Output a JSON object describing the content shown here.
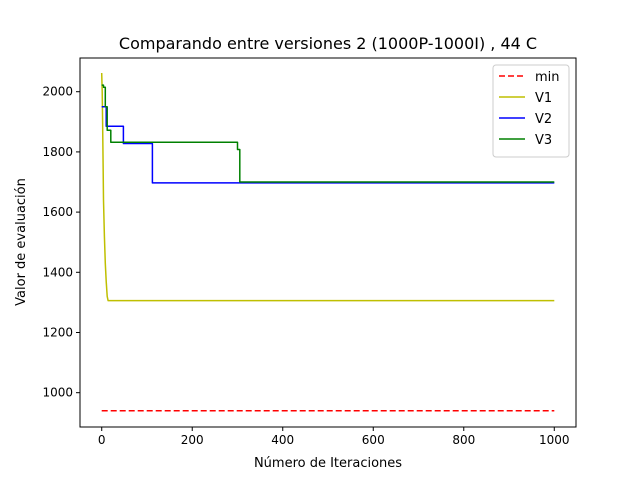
{
  "chart_data": {
    "type": "line",
    "title": "Comparando entre versiones 2 (1000P-1000I) , 44 C",
    "xlabel": "Número de Iteraciones",
    "ylabel": "Valor de evaluación",
    "xlim": [
      -48,
      1048
    ],
    "ylim": [
      886,
      2112
    ],
    "xticks": [
      0,
      200,
      400,
      600,
      800,
      1000
    ],
    "yticks": [
      1000,
      1200,
      1400,
      1600,
      1800,
      2000
    ],
    "grid": false,
    "legend_position": "top-right",
    "series": [
      {
        "name": "min",
        "color": "#ff0000",
        "dash": true,
        "points": [
          [
            0,
            940
          ],
          [
            1000,
            940
          ]
        ]
      },
      {
        "name": "V1",
        "color": "#bfbf00",
        "dash": false,
        "points": [
          [
            0,
            2062
          ],
          [
            1,
            2000
          ],
          [
            2,
            1900
          ],
          [
            3,
            1760
          ],
          [
            4,
            1640
          ],
          [
            6,
            1520
          ],
          [
            8,
            1430
          ],
          [
            10,
            1370
          ],
          [
            12,
            1320
          ],
          [
            14,
            1306
          ],
          [
            20,
            1306
          ],
          [
            1000,
            1306
          ]
        ]
      },
      {
        "name": "V2",
        "color": "#0000ff",
        "dash": false,
        "points": [
          [
            0,
            1950
          ],
          [
            10,
            1950
          ],
          [
            10,
            1885
          ],
          [
            48,
            1885
          ],
          [
            48,
            1828
          ],
          [
            112,
            1828
          ],
          [
            112,
            1697
          ],
          [
            1000,
            1697
          ]
        ]
      },
      {
        "name": "V3",
        "color": "#008000",
        "dash": false,
        "points": [
          [
            0,
            2022
          ],
          [
            4,
            2022
          ],
          [
            4,
            2015
          ],
          [
            8,
            2015
          ],
          [
            8,
            1950
          ],
          [
            12,
            1950
          ],
          [
            12,
            1872
          ],
          [
            20,
            1872
          ],
          [
            20,
            1832
          ],
          [
            300,
            1832
          ],
          [
            300,
            1808
          ],
          [
            305,
            1808
          ],
          [
            305,
            1700
          ],
          [
            1000,
            1700
          ]
        ]
      }
    ]
  }
}
